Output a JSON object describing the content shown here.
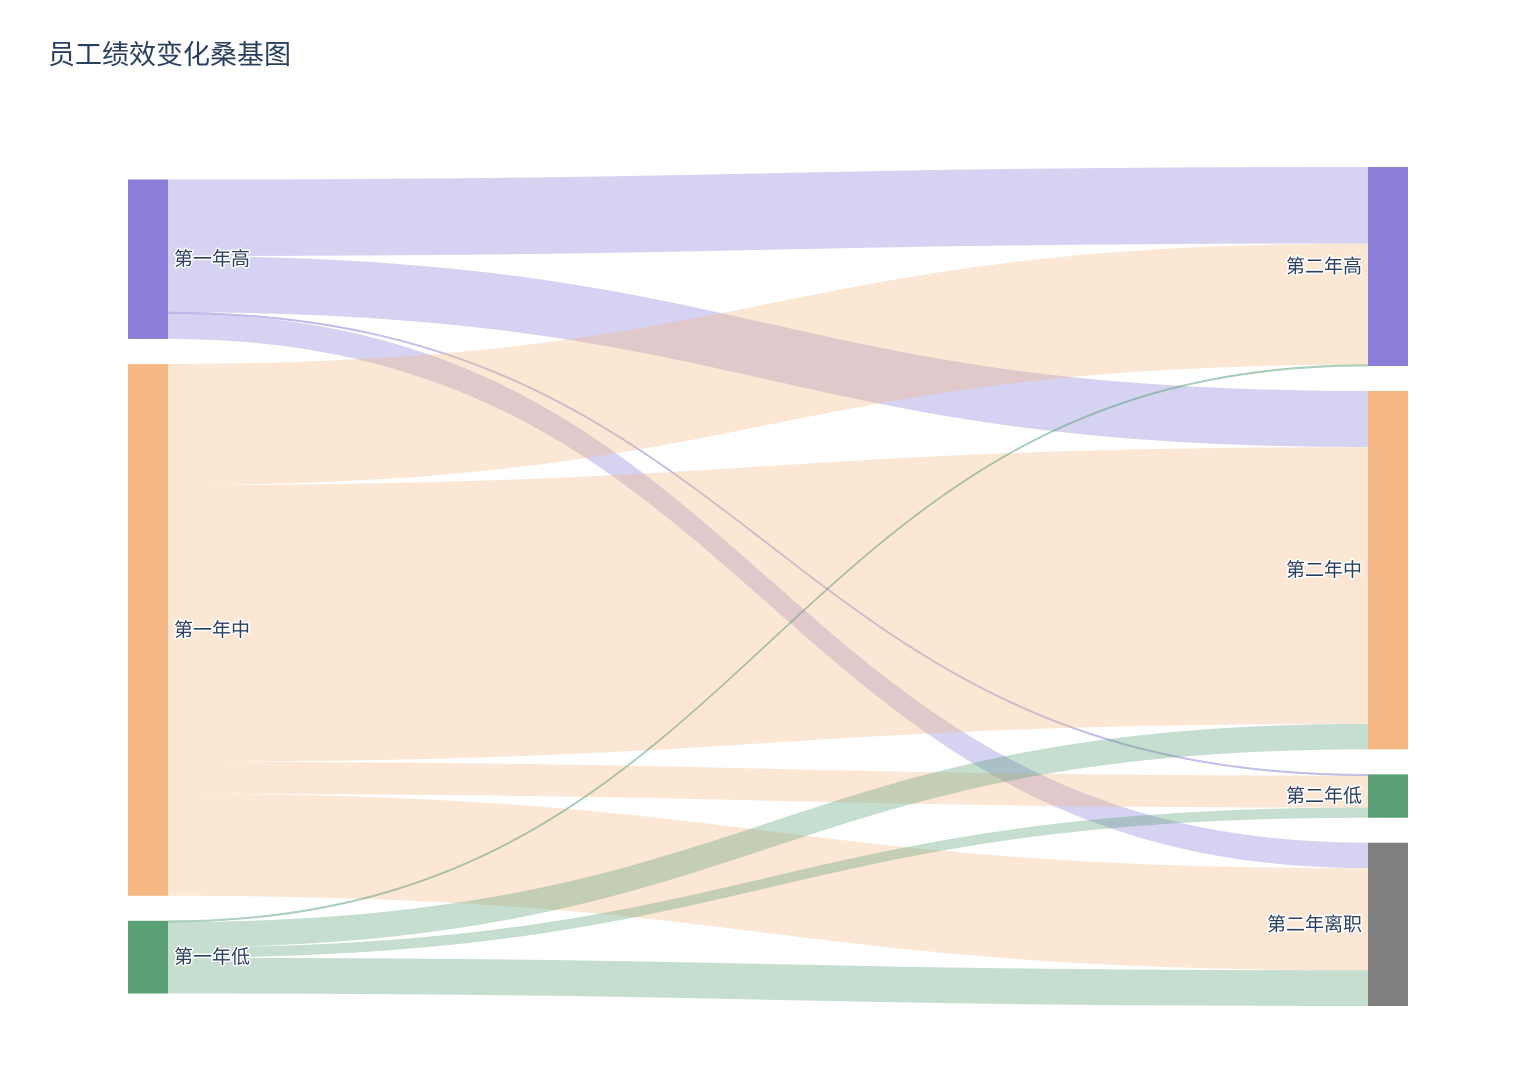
{
  "title": "员工绩效变化桑基图",
  "chart_data": {
    "type": "sankey",
    "title": "员工绩效变化桑基图",
    "nodes": [
      {
        "id": "h1",
        "label": "第一年高",
        "column": 0,
        "color": "#8a7ed8"
      },
      {
        "id": "m1",
        "label": "第一年中",
        "column": 0,
        "color": "#f5b884"
      },
      {
        "id": "l1",
        "label": "第一年低",
        "column": 0,
        "color": "#5aa077"
      },
      {
        "id": "h2",
        "label": "第二年高",
        "column": 1,
        "color": "#8a7ed8"
      },
      {
        "id": "m2",
        "label": "第二年中",
        "column": 1,
        "color": "#f5b884"
      },
      {
        "id": "l2",
        "label": "第二年低",
        "column": 1,
        "color": "#5aa077"
      },
      {
        "id": "q2",
        "label": "第二年离职",
        "column": 1,
        "color": "#808080"
      }
    ],
    "links": [
      {
        "source": "h1",
        "target": "h2",
        "value": 30
      },
      {
        "source": "h1",
        "target": "m2",
        "value": 22
      },
      {
        "source": "h1",
        "target": "l2",
        "value": 0.5
      },
      {
        "source": "h1",
        "target": "q2",
        "value": 5
      },
      {
        "source": "h1",
        "target": "q2",
        "value": 5
      },
      {
        "source": "m1",
        "target": "h2",
        "value": 47.5
      },
      {
        "source": "m1",
        "target": "m2",
        "value": 108.5
      },
      {
        "source": "m1",
        "target": "l2",
        "value": 12.5
      },
      {
        "source": "m1",
        "target": "q2",
        "value": 40
      },
      {
        "source": "l1",
        "target": "h2",
        "value": 0.5
      },
      {
        "source": "l1",
        "target": "m2",
        "value": 10
      },
      {
        "source": "l1",
        "target": "l2",
        "value": 4
      },
      {
        "source": "l1",
        "target": "q2",
        "value": 14
      }
    ]
  }
}
